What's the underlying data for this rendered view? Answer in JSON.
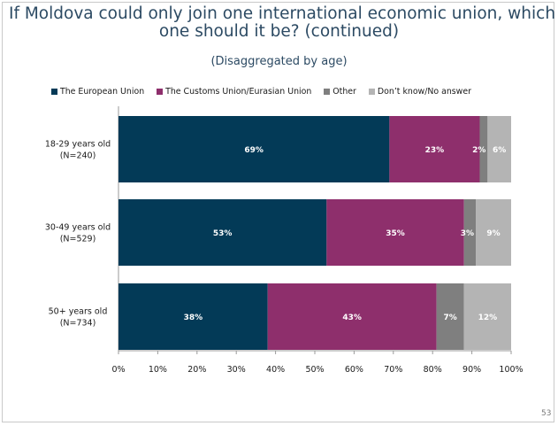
{
  "slide": {
    "title_line1": "If Moldova could only join one international economic union, which",
    "title_line2": "one should it be? (continued)",
    "subtitle": "(Disaggregated by age)",
    "page_number": "53"
  },
  "colors": {
    "eu": "#033a57",
    "customs": "#8e2f6c",
    "other": "#7f7f7f",
    "dk": "#b4b4b4"
  },
  "chart_data": {
    "type": "bar",
    "orientation": "horizontal",
    "stacked": true,
    "title": "If Moldova could only join one international economic union, which one should it be? (continued)",
    "subtitle": "(Disaggregated by age)",
    "categories": [
      {
        "line1": "18-29 years old",
        "line2": "(N=240)"
      },
      {
        "line1": "30-49 years old",
        "line2": "(N=529)"
      },
      {
        "line1": "50+ years old",
        "line2": "(N=734)"
      }
    ],
    "series": [
      {
        "key": "eu",
        "name": "The European Union",
        "values": [
          69,
          53,
          38
        ],
        "labels": [
          "69%",
          "53%",
          "38%"
        ]
      },
      {
        "key": "customs",
        "name": "The Customs Union/Eurasian Union",
        "values": [
          23,
          35,
          43
        ],
        "labels": [
          "23%",
          "35%",
          "43%"
        ]
      },
      {
        "key": "other",
        "name": "Other",
        "values": [
          2,
          3,
          7
        ],
        "labels": [
          "2%",
          "3%",
          "7%"
        ]
      },
      {
        "key": "dk",
        "name": "Don’t know/No answer",
        "values": [
          6,
          9,
          12
        ],
        "labels": [
          "6%",
          "9%",
          "12%"
        ]
      }
    ],
    "xlim": [
      0,
      100
    ],
    "xticks": [
      "0%",
      "10%",
      "20%",
      "30%",
      "40%",
      "50%",
      "60%",
      "70%",
      "80%",
      "90%",
      "100%"
    ],
    "legend_position": "top",
    "grid": false
  }
}
